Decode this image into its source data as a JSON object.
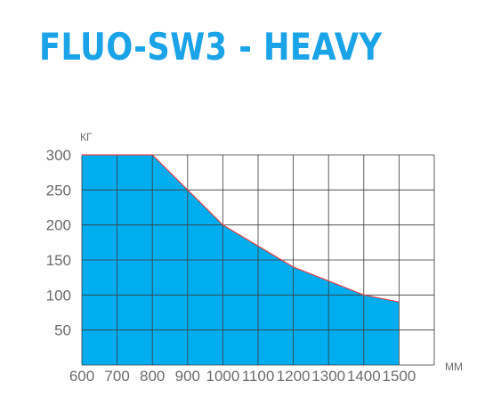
{
  "title": "FLUO-SW3 - HEAVY",
  "chart_data": {
    "type": "area",
    "ylabel": "КГ",
    "xlabel": "ММ",
    "x": [
      600,
      700,
      800,
      900,
      1000,
      1100,
      1200,
      1300,
      1400,
      1500
    ],
    "values": [
      300,
      300,
      300,
      250,
      200,
      170,
      140,
      120,
      100,
      90
    ],
    "xlim": [
      600,
      1600
    ],
    "ylim": [
      0,
      300
    ],
    "xticks": [
      "600",
      "700",
      "800",
      "900",
      "1000",
      "1100",
      "1200",
      "1300",
      "1400",
      "1500"
    ],
    "yticks": [
      "50",
      "100",
      "150",
      "200",
      "250",
      "300"
    ],
    "grid": true,
    "colors": {
      "fill": "#00aeef",
      "line": "#e0404a",
      "grid": "#3a3a3a",
      "title": "#1aa3e6"
    }
  }
}
